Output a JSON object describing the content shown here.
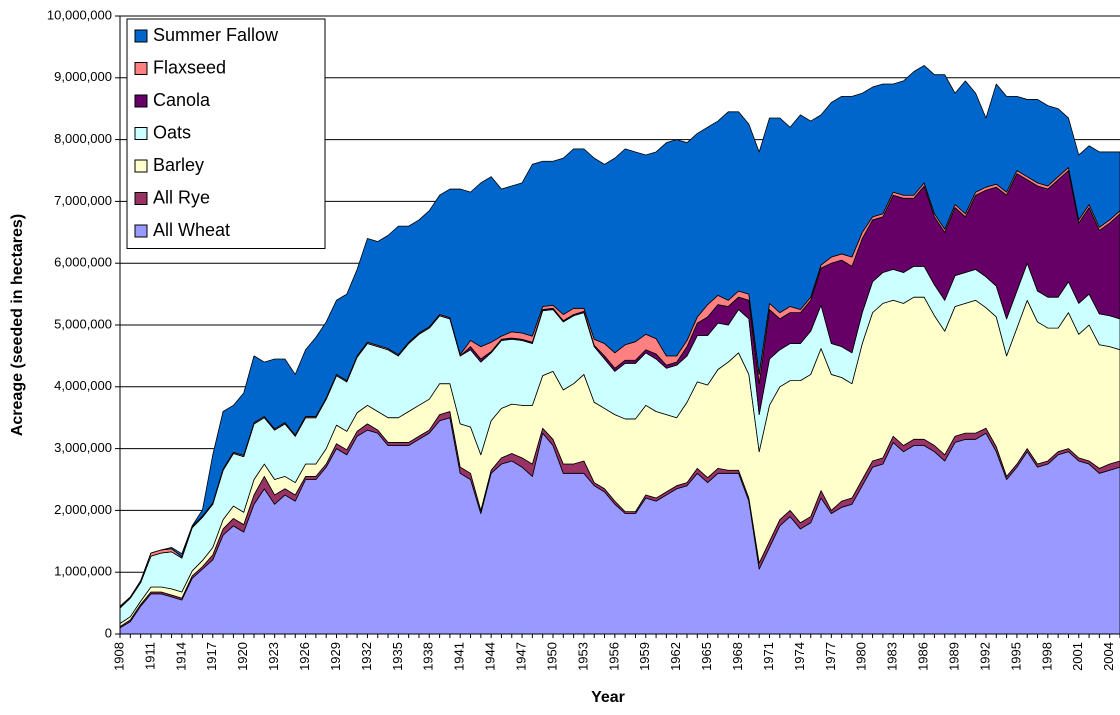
{
  "chart_data": {
    "type": "stacked-area",
    "x_label": "Year",
    "y_label": "Acreage (seeded in hectares)",
    "categories": [
      "1908",
      null,
      null,
      "1911",
      null,
      null,
      "1914",
      null,
      null,
      "1917",
      null,
      null,
      "1920",
      null,
      null,
      "1923",
      null,
      null,
      "1926",
      null,
      null,
      "1929",
      null,
      null,
      "1932",
      null,
      null,
      "1935",
      null,
      null,
      "1938",
      null,
      null,
      "1941",
      null,
      null,
      "1944",
      null,
      null,
      "1947",
      null,
      null,
      "1950",
      null,
      null,
      "1953",
      null,
      null,
      "1956",
      null,
      null,
      "1959",
      null,
      null,
      "1962",
      null,
      null,
      "1965",
      null,
      null,
      "1968",
      null,
      null,
      "1971",
      null,
      null,
      "1974",
      null,
      null,
      "1977",
      null,
      null,
      "1980",
      null,
      null,
      "1983",
      null,
      null,
      "1986",
      null,
      null,
      "1989",
      null,
      null,
      "1992",
      null,
      null,
      "1995",
      null,
      null,
      "1998",
      null,
      null,
      "2001",
      null,
      null,
      "2004",
      null
    ],
    "ylim": [
      0,
      10000000
    ],
    "yticks": [
      0,
      {
        "value": 1000000,
        "label": "1,000,000"
      },
      {
        "value": 2000000,
        "label": "2,000,000"
      },
      {
        "value": 3000000,
        "label": "3,000,000"
      },
      {
        "value": 4000000,
        "label": "4,000,000"
      },
      {
        "value": 5000000,
        "label": "5,000,000"
      },
      {
        "value": 6000000,
        "label": "6,000,000"
      },
      {
        "value": 7000000,
        "label": "7,000,000"
      },
      {
        "value": 8000000,
        "label": "8,000,000"
      },
      {
        "value": 9000000,
        "label": "9,000,000"
      },
      {
        "value": 10000000,
        "label": "10,000,000"
      }
    ],
    "grid": true,
    "legend": "top-left",
    "series": [
      {
        "name": "All Wheat",
        "color": "#9999ff",
        "values": [
          100000,
          200000,
          450000,
          650000,
          650000,
          600000,
          550000,
          900000,
          1050000,
          1200000,
          1600000,
          1750000,
          1650000,
          2100000,
          2350000,
          2100000,
          2250000,
          2150000,
          2500000,
          2500000,
          2700000,
          3000000,
          2900000,
          3200000,
          3300000,
          3250000,
          3050000,
          3050000,
          3050000,
          3150000,
          3250000,
          3450000,
          3500000,
          2600000,
          2500000,
          1950000,
          2600000,
          2750000,
          2800000,
          2700000,
          2550000,
          3250000,
          3050000,
          2600000,
          2600000,
          2600000,
          2400000,
          2300000,
          2100000,
          1950000,
          1950000,
          2200000,
          2150000,
          2250000,
          2350000,
          2400000,
          2600000,
          2450000,
          2600000,
          2600000,
          2600000,
          2150000,
          1050000,
          1400000,
          1750000,
          1900000,
          1700000,
          1800000,
          2200000,
          1950000,
          2050000,
          2100000,
          2400000,
          2700000,
          2750000,
          3100000,
          2950000,
          3050000,
          3050000,
          2950000,
          2800000,
          3100000,
          3150000,
          3150000,
          3250000,
          2950000,
          2500000,
          2700000,
          2950000,
          2700000,
          2750000,
          2900000,
          2950000,
          2800000,
          2750000,
          2600000,
          2650000,
          2700000
        ]
      },
      {
        "name": "All Rye",
        "color": "#993366",
        "values": [
          20000,
          30000,
          30000,
          30000,
          30000,
          30000,
          30000,
          40000,
          40000,
          80000,
          100000,
          120000,
          120000,
          150000,
          200000,
          150000,
          100000,
          100000,
          50000,
          50000,
          50000,
          80000,
          80000,
          80000,
          100000,
          50000,
          50000,
          50000,
          50000,
          50000,
          50000,
          100000,
          100000,
          100000,
          100000,
          50000,
          50000,
          100000,
          120000,
          150000,
          200000,
          80000,
          100000,
          150000,
          150000,
          200000,
          50000,
          50000,
          50000,
          30000,
          30000,
          50000,
          50000,
          50000,
          50000,
          50000,
          80000,
          80000,
          80000,
          50000,
          50000,
          50000,
          100000,
          100000,
          100000,
          100000,
          100000,
          100000,
          120000,
          50000,
          100000,
          100000,
          100000,
          100000,
          100000,
          100000,
          100000,
          100000,
          100000,
          100000,
          100000,
          100000,
          100000,
          100000,
          80000,
          80000,
          50000,
          50000,
          50000,
          50000,
          50000,
          50000,
          50000,
          50000,
          50000,
          80000,
          100000,
          100000
        ]
      },
      {
        "name": "Barley",
        "color": "#ffffcc",
        "values": [
          50000,
          50000,
          50000,
          80000,
          80000,
          100000,
          100000,
          80000,
          100000,
          120000,
          150000,
          200000,
          200000,
          250000,
          200000,
          250000,
          200000,
          200000,
          200000,
          200000,
          250000,
          300000,
          300000,
          300000,
          300000,
          300000,
          400000,
          400000,
          500000,
          500000,
          500000,
          500000,
          450000,
          700000,
          750000,
          900000,
          800000,
          800000,
          800000,
          850000,
          950000,
          850000,
          1100000,
          1200000,
          1300000,
          1400000,
          1300000,
          1300000,
          1400000,
          1500000,
          1500000,
          1450000,
          1400000,
          1250000,
          1100000,
          1300000,
          1400000,
          1500000,
          1600000,
          1750000,
          1900000,
          2000000,
          1800000,
          2200000,
          2150000,
          2100000,
          2300000,
          2300000,
          2300000,
          2200000,
          2000000,
          1850000,
          2200000,
          2400000,
          2500000,
          2200000,
          2300000,
          2300000,
          2300000,
          2100000,
          2000000,
          2100000,
          2100000,
          2150000,
          1950000,
          2100000,
          1950000,
          2200000,
          2400000,
          2300000,
          2150000,
          2000000,
          2200000,
          2000000,
          2200000,
          2000000,
          1900000,
          1800000
        ]
      },
      {
        "name": "Oats",
        "color": "#ccffff",
        "values": [
          250000,
          300000,
          300000,
          500000,
          550000,
          600000,
          550000,
          700000,
          700000,
          700000,
          800000,
          850000,
          900000,
          900000,
          750000,
          800000,
          850000,
          750000,
          750000,
          750000,
          800000,
          800000,
          800000,
          900000,
          1000000,
          1050000,
          1100000,
          1000000,
          1100000,
          1150000,
          1150000,
          1100000,
          1050000,
          1100000,
          1250000,
          1500000,
          1100000,
          1100000,
          1050000,
          1050000,
          1000000,
          1050000,
          1000000,
          1100000,
          1100000,
          1000000,
          900000,
          800000,
          700000,
          900000,
          900000,
          850000,
          850000,
          750000,
          850000,
          750000,
          750000,
          800000,
          750000,
          600000,
          700000,
          900000,
          600000,
          750000,
          600000,
          600000,
          600000,
          700000,
          700000,
          500000,
          500000,
          500000,
          500000,
          500000,
          500000,
          500000,
          500000,
          500000,
          500000,
          500000,
          500000,
          500000,
          500000,
          500000,
          500000,
          500000,
          600000,
          600000,
          600000,
          500000,
          500000,
          500000,
          500000,
          500000,
          500000,
          500000,
          500000,
          500000
        ]
      },
      {
        "name": "Canola",
        "color": "#660066",
        "values": [
          0,
          0,
          0,
          0,
          0,
          0,
          0,
          0,
          0,
          0,
          0,
          0,
          0,
          0,
          0,
          0,
          0,
          0,
          0,
          0,
          0,
          0,
          0,
          0,
          0,
          0,
          0,
          0,
          0,
          0,
          0,
          0,
          0,
          0,
          50000,
          50000,
          20000,
          20000,
          20000,
          20000,
          20000,
          20000,
          20000,
          20000,
          20000,
          20000,
          20000,
          50000,
          50000,
          50000,
          50000,
          50000,
          80000,
          50000,
          50000,
          150000,
          200000,
          300000,
          300000,
          300000,
          200000,
          300000,
          500000,
          800000,
          500000,
          500000,
          500000,
          500000,
          600000,
          1300000,
          1400000,
          1400000,
          1200000,
          1000000,
          900000,
          1200000,
          1200000,
          1100000,
          1300000,
          1100000,
          1100000,
          1100000,
          900000,
          1200000,
          1400000,
          1600000,
          2000000,
          1900000,
          1350000,
          1700000,
          1750000,
          1900000,
          1800000,
          1300000,
          1400000,
          1350000,
          1500000,
          1700000
        ]
      },
      {
        "name": "Flaxseed",
        "color": "#ff8080",
        "values": [
          20000,
          20000,
          30000,
          50000,
          50000,
          50000,
          20000,
          20000,
          20000,
          20000,
          20000,
          20000,
          20000,
          20000,
          20000,
          20000,
          20000,
          20000,
          20000,
          20000,
          20000,
          20000,
          20000,
          20000,
          20000,
          20000,
          20000,
          20000,
          20000,
          20000,
          20000,
          20000,
          20000,
          20000,
          100000,
          200000,
          150000,
          50000,
          100000,
          100000,
          100000,
          50000,
          50000,
          100000,
          100000,
          50000,
          100000,
          200000,
          250000,
          250000,
          300000,
          250000,
          250000,
          150000,
          100000,
          100000,
          100000,
          200000,
          150000,
          100000,
          100000,
          100000,
          150000,
          100000,
          100000,
          100000,
          50000,
          50000,
          50000,
          100000,
          100000,
          150000,
          100000,
          50000,
          50000,
          50000,
          50000,
          50000,
          50000,
          50000,
          50000,
          50000,
          50000,
          50000,
          50000,
          50000,
          50000,
          50000,
          50000,
          50000,
          50000,
          50000,
          50000,
          50000,
          50000,
          50000,
          50000,
          50000
        ]
      },
      {
        "name": "Summer Fallow",
        "color": "#0066cc",
        "values": [
          10000,
          0,
          0,
          0,
          0,
          20000,
          50000,
          10000,
          100000,
          780000,
          930000,
          760000,
          1010000,
          1080000,
          880000,
          1130000,
          1030000,
          980000,
          1080000,
          1280000,
          1230000,
          1200000,
          1400000,
          1400000,
          1680000,
          1680000,
          1830000,
          2080000,
          1880000,
          1830000,
          1880000,
          1930000,
          2080000,
          2680000,
          2400000,
          2650000,
          2680000,
          2380000,
          2360000,
          2430000,
          2780000,
          2350000,
          2330000,
          2530000,
          2580000,
          2580000,
          2930000,
          2900000,
          3150000,
          3170000,
          3070000,
          2900000,
          3020000,
          3450000,
          3500000,
          3200000,
          2970000,
          2870000,
          2820000,
          3050000,
          2900000,
          2750000,
          3600000,
          3000000,
          3150000,
          2900000,
          3150000,
          2850000,
          2430000,
          2500000,
          2550000,
          2600000,
          2250000,
          2100000,
          2100000,
          1750000,
          1850000,
          2000000,
          1900000,
          2250000,
          2500000,
          1800000,
          2150000,
          1600000,
          1120000,
          1620000,
          1550000,
          1200000,
          1250000,
          1350000,
          1300000,
          1100000,
          800000,
          1050000,
          950000,
          1220000,
          1100000,
          950000
        ]
      }
    ]
  }
}
